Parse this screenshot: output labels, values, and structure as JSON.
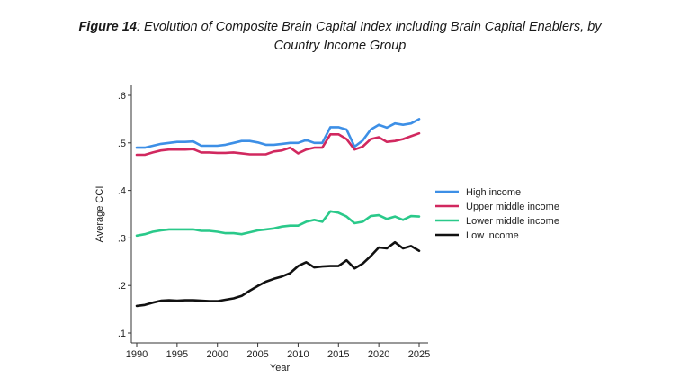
{
  "caption": {
    "label": "Figure 14",
    "text": ": Evolution of Composite Brain Capital Index including Brain Capital Enablers, by",
    "line2": "Country Income Group"
  },
  "chart_data": {
    "type": "line",
    "title": "Evolution of Composite Brain Capital Index including Brain Capital Enablers, by Country Income Group",
    "xlabel": "Year",
    "ylabel": "Average CCI",
    "xlim": [
      1990,
      2025
    ],
    "ylim": [
      0.1,
      0.6
    ],
    "xticks": [
      1990,
      1995,
      2000,
      2005,
      2010,
      2015,
      2020,
      2025
    ],
    "yticks": [
      0.1,
      0.2,
      0.3,
      0.4,
      0.5,
      0.6
    ],
    "ytick_labels": [
      ".1",
      ".2",
      ".3",
      ".4",
      ".5",
      ".6"
    ],
    "legend_position": "right",
    "x": [
      1990,
      1991,
      1992,
      1993,
      1994,
      1995,
      1996,
      1997,
      1998,
      1999,
      2000,
      2001,
      2002,
      2003,
      2004,
      2005,
      2006,
      2007,
      2008,
      2009,
      2010,
      2011,
      2012,
      2013,
      2014,
      2015,
      2016,
      2017,
      2018,
      2019,
      2020,
      2021,
      2022,
      2023,
      2024,
      2025
    ],
    "series": [
      {
        "name": "High income",
        "color": "#3d8fe6",
        "values": [
          0.49,
          0.49,
          0.494,
          0.498,
          0.5,
          0.502,
          0.502,
          0.503,
          0.494,
          0.494,
          0.494,
          0.496,
          0.5,
          0.504,
          0.504,
          0.501,
          0.496,
          0.496,
          0.498,
          0.5,
          0.5,
          0.506,
          0.5,
          0.5,
          0.533,
          0.533,
          0.528,
          0.492,
          0.505,
          0.528,
          0.538,
          0.532,
          0.541,
          0.538,
          0.541,
          0.55
        ]
      },
      {
        "name": "Upper middle income",
        "color": "#d1285f",
        "values": [
          0.475,
          0.475,
          0.48,
          0.484,
          0.486,
          0.486,
          0.486,
          0.487,
          0.48,
          0.48,
          0.479,
          0.479,
          0.48,
          0.478,
          0.476,
          0.476,
          0.476,
          0.482,
          0.484,
          0.49,
          0.478,
          0.486,
          0.49,
          0.49,
          0.518,
          0.518,
          0.508,
          0.486,
          0.492,
          0.508,
          0.512,
          0.502,
          0.504,
          0.508,
          0.514,
          0.52
        ]
      },
      {
        "name": "Lower middle income",
        "color": "#2ac98a",
        "values": [
          0.305,
          0.308,
          0.313,
          0.316,
          0.318,
          0.318,
          0.318,
          0.318,
          0.315,
          0.315,
          0.313,
          0.31,
          0.31,
          0.308,
          0.312,
          0.316,
          0.318,
          0.32,
          0.324,
          0.326,
          0.326,
          0.334,
          0.338,
          0.334,
          0.356,
          0.353,
          0.345,
          0.331,
          0.334,
          0.346,
          0.348,
          0.34,
          0.345,
          0.338,
          0.346,
          0.345
        ]
      },
      {
        "name": "Low income",
        "color": "#111111",
        "values": [
          0.157,
          0.159,
          0.164,
          0.168,
          0.169,
          0.168,
          0.169,
          0.169,
          0.168,
          0.167,
          0.167,
          0.17,
          0.173,
          0.178,
          0.189,
          0.199,
          0.208,
          0.214,
          0.219,
          0.226,
          0.241,
          0.249,
          0.238,
          0.24,
          0.241,
          0.241,
          0.253,
          0.236,
          0.246,
          0.262,
          0.28,
          0.278,
          0.291,
          0.278,
          0.283,
          0.273
        ]
      }
    ]
  }
}
